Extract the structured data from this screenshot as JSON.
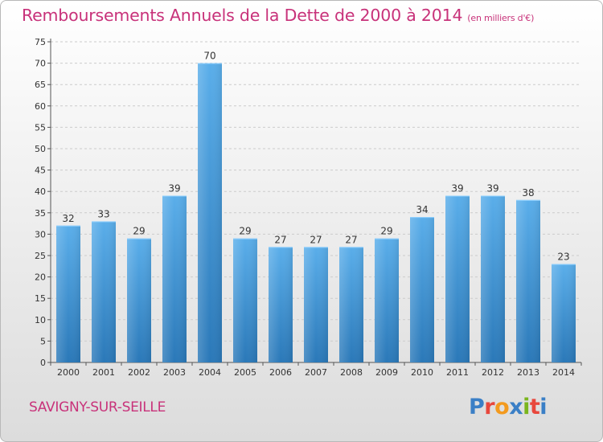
{
  "header": {
    "title": "Remboursements Annuels de la Dette de 2000 à 2014",
    "subtitle": "(en milliers d'€)"
  },
  "footer": {
    "commune": "SAVIGNY-SUR-SEILLE",
    "logo_text": "Proxiti",
    "logo_colors": [
      "#3a7fc6",
      "#e8473c",
      "#f39a1e",
      "#3a7fc6",
      "#7ab51d",
      "#e8473c",
      "#3a7fc6"
    ]
  },
  "colors": {
    "bar_top": "#5aaeea",
    "bar_bottom": "#2a78b8",
    "accent": "#c8327a",
    "grid": "#cccccc"
  },
  "chart_data": {
    "type": "bar",
    "categories": [
      "2000",
      "2001",
      "2002",
      "2003",
      "2004",
      "2005",
      "2006",
      "2007",
      "2008",
      "2009",
      "2010",
      "2011",
      "2012",
      "2013",
      "2014"
    ],
    "values": [
      32,
      33,
      29,
      39,
      70,
      29,
      27,
      27,
      27,
      29,
      34,
      39,
      39,
      38,
      23
    ],
    "title": "Remboursements Annuels de la Dette de 2000 à 2014",
    "subtitle": "(en milliers d'€)",
    "xlabel": "",
    "ylabel": "",
    "ylim": [
      0,
      75
    ],
    "yticks": [
      0,
      5,
      10,
      15,
      20,
      25,
      30,
      35,
      40,
      45,
      50,
      55,
      60,
      65,
      70,
      75
    ],
    "grid": true,
    "data_labels": true
  }
}
